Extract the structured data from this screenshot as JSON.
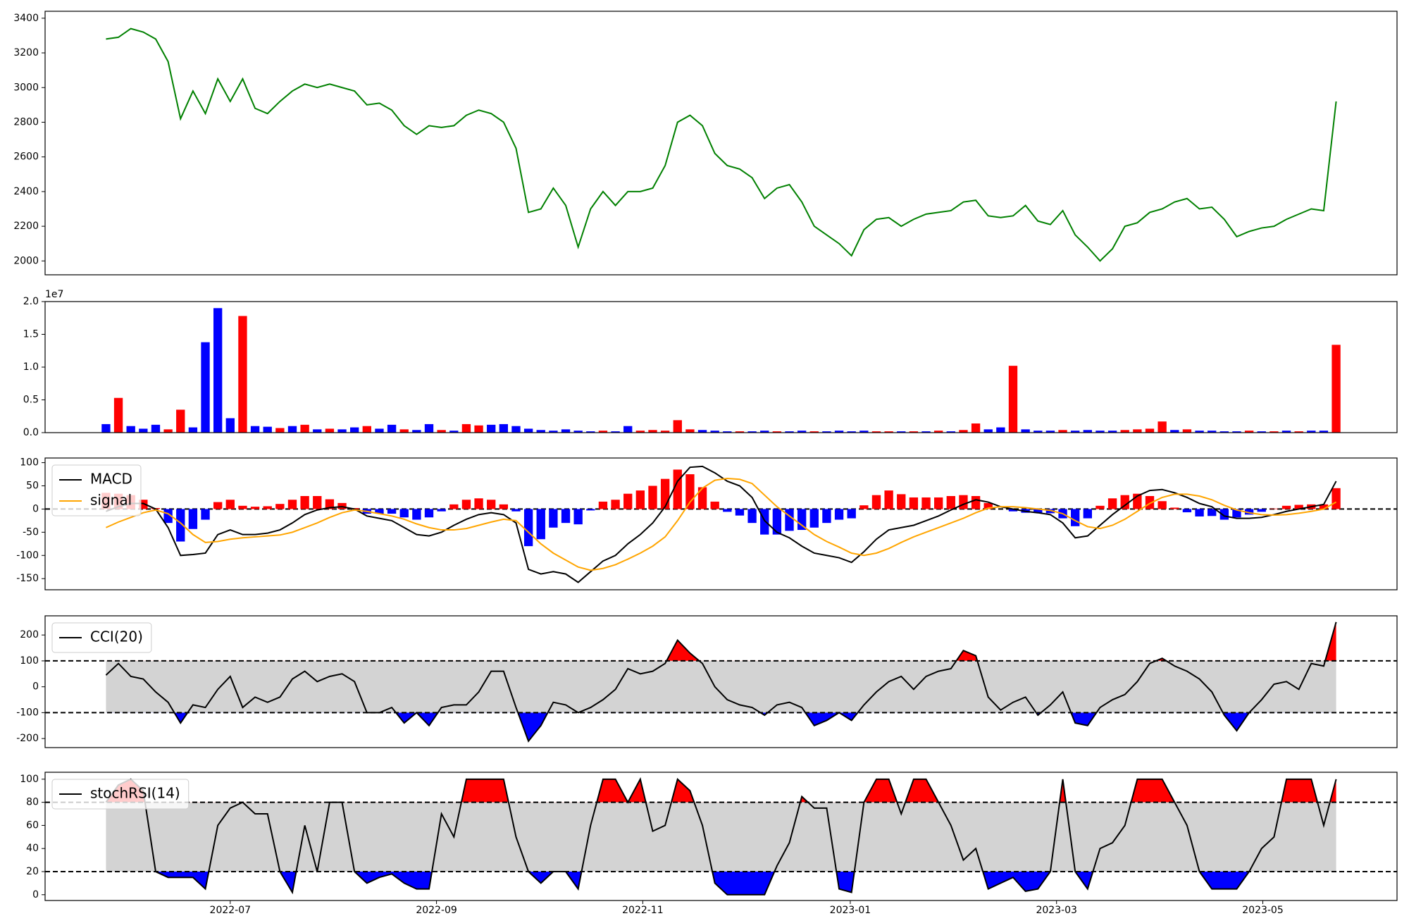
{
  "chart_data": [
    {
      "type": "line",
      "xlim": [
        -4.9,
        103.9
      ],
      "ylim": [
        1920,
        3440
      ],
      "yticks": [
        2000,
        2200,
        2400,
        2600,
        2800,
        3000,
        3200,
        3400
      ],
      "series": [
        {
          "color": "green",
          "values": [
            3280,
            3290,
            3340,
            3320,
            3280,
            3150,
            2820,
            2980,
            2850,
            3050,
            2920,
            3050,
            2880,
            2850,
            2920,
            2980,
            3020,
            3000,
            3020,
            3000,
            2980,
            2900,
            2910,
            2870,
            2780,
            2730,
            2780,
            2770,
            2780,
            2840,
            2870,
            2850,
            2800,
            2650,
            2280,
            2300,
            2420,
            2320,
            2080,
            2300,
            2400,
            2320,
            2400,
            2400,
            2420,
            2550,
            2800,
            2840,
            2780,
            2620,
            2550,
            2530,
            2480,
            2360,
            2420,
            2440,
            2340,
            2200,
            2150,
            2100,
            2030,
            2180,
            2240,
            2250,
            2200,
            2240,
            2270,
            2280,
            2290,
            2340,
            2350,
            2260,
            2250,
            2260,
            2320,
            2230,
            2210,
            2290,
            2150,
            2080,
            2000,
            2070,
            2200,
            2220,
            2280,
            2300,
            2340,
            2360,
            2300,
            2310,
            2240,
            2140,
            2170,
            2190,
            2200,
            2240,
            2270,
            2300,
            2290,
            2920
          ]
        }
      ]
    },
    {
      "type": "bar",
      "offset_text": "1e7",
      "xlim": [
        -4.9,
        103.9
      ],
      "ylim": [
        0,
        2.0
      ],
      "yticks": [
        {
          "value": 0,
          "label": "0.0"
        },
        0.5,
        {
          "value": 1,
          "label": "1.0"
        },
        1.5,
        {
          "value": 2,
          "label": "2.0"
        }
      ],
      "series": [
        {
          "values": [
            0.13,
            0.53,
            0.1,
            0.06,
            0.12,
            0.05,
            0.35,
            0.08,
            1.38,
            1.9,
            0.22,
            1.78,
            0.1,
            0.09,
            0.07,
            0.1,
            0.12,
            0.05,
            0.06,
            0.05,
            0.08,
            0.1,
            0.06,
            0.12,
            0.05,
            0.04,
            0.13,
            0.04,
            0.03,
            0.13,
            0.11,
            0.12,
            0.13,
            0.1,
            0.06,
            0.04,
            0.03,
            0.05,
            0.03,
            0.02,
            0.03,
            0.02,
            0.1,
            0.03,
            0.04,
            0.03,
            0.19,
            0.05,
            0.04,
            0.03,
            0.02,
            0.02,
            0.02,
            0.03,
            0.02,
            0.02,
            0.03,
            0.02,
            0.02,
            0.03,
            0.02,
            0.03,
            0.02,
            0.02,
            0.02,
            0.02,
            0.02,
            0.03,
            0.02,
            0.04,
            0.14,
            0.05,
            0.08,
            1.02,
            0.05,
            0.03,
            0.03,
            0.04,
            0.03,
            0.04,
            0.03,
            0.03,
            0.04,
            0.05,
            0.06,
            0.17,
            0.04,
            0.05,
            0.03,
            0.03,
            0.02,
            0.02,
            0.03,
            0.02,
            0.02,
            0.03,
            0.02,
            0.03,
            0.03,
            1.34
          ],
          "colors": [
            "blue",
            "red",
            "blue",
            "blue",
            "blue",
            "red",
            "red",
            "blue",
            "blue",
            "blue",
            "blue",
            "red",
            "blue",
            "blue",
            "red",
            "blue",
            "red",
            "blue",
            "red",
            "blue",
            "blue",
            "red",
            "blue",
            "blue",
            "red",
            "blue",
            "blue",
            "red",
            "blue",
            "red",
            "red",
            "blue",
            "blue",
            "blue",
            "blue",
            "blue",
            "blue",
            "blue",
            "blue",
            "blue",
            "red",
            "blue",
            "blue",
            "red",
            "red",
            "red",
            "red",
            "red",
            "blue",
            "blue",
            "blue",
            "red",
            "blue",
            "blue",
            "red",
            "blue",
            "blue",
            "red",
            "blue",
            "blue",
            "blue",
            "blue",
            "red",
            "red",
            "blue",
            "red",
            "blue",
            "red",
            "blue",
            "red",
            "red",
            "blue",
            "blue",
            "red",
            "blue",
            "blue",
            "blue",
            "red",
            "blue",
            "blue",
            "blue",
            "blue",
            "red",
            "red",
            "red",
            "red",
            "blue",
            "red",
            "blue",
            "blue",
            "blue",
            "blue",
            "red",
            "blue",
            "red",
            "blue",
            "red",
            "blue",
            "blue",
            "red"
          ]
        }
      ]
    },
    {
      "type": "line",
      "xlim": [
        -4.9,
        103.9
      ],
      "ylim": [
        -174,
        110
      ],
      "yticks": [
        -150,
        -100,
        -50,
        0,
        50,
        100
      ],
      "hlines": [
        0
      ],
      "legend": "upper left",
      "series": [
        {
          "name": "MACD",
          "color": "black",
          "values": [
            -5,
            5,
            12,
            12,
            0,
            -40,
            -100,
            -98,
            -95,
            -55,
            -45,
            -55,
            -55,
            -52,
            -45,
            -30,
            -12,
            -2,
            3,
            5,
            0,
            -15,
            -20,
            -25,
            -40,
            -55,
            -58,
            -50,
            -35,
            -22,
            -12,
            -8,
            -12,
            -30,
            -130,
            -140,
            -135,
            -140,
            -158,
            -135,
            -112,
            -100,
            -75,
            -55,
            -30,
            5,
            60,
            90,
            92,
            78,
            60,
            50,
            25,
            -25,
            -50,
            -62,
            -80,
            -95,
            -100,
            -105,
            -115,
            -92,
            -65,
            -45,
            -40,
            -35,
            -25,
            -15,
            -2,
            10,
            20,
            15,
            5,
            0,
            -5,
            -8,
            -12,
            -30,
            -62,
            -58,
            -35,
            -12,
            8,
            28,
            40,
            42,
            35,
            25,
            12,
            5,
            -15,
            -20,
            -20,
            -18,
            -12,
            -5,
            0,
            5,
            10,
            60
          ]
        },
        {
          "name": "signal",
          "color": "orange",
          "values": [
            -40,
            -28,
            -18,
            -8,
            -2,
            -10,
            -30,
            -55,
            -72,
            -70,
            -65,
            -62,
            -60,
            -58,
            -56,
            -50,
            -40,
            -30,
            -18,
            -8,
            -2,
            -5,
            -10,
            -15,
            -22,
            -32,
            -40,
            -45,
            -45,
            -42,
            -35,
            -28,
            -22,
            -25,
            -50,
            -75,
            -95,
            -110,
            -125,
            -132,
            -128,
            -120,
            -108,
            -95,
            -80,
            -60,
            -25,
            15,
            45,
            62,
            66,
            64,
            55,
            30,
            5,
            -15,
            -35,
            -55,
            -70,
            -82,
            -95,
            -100,
            -95,
            -85,
            -72,
            -60,
            -50,
            -40,
            -30,
            -20,
            -8,
            2,
            5,
            5,
            3,
            0,
            -3,
            -10,
            -25,
            -38,
            -42,
            -35,
            -22,
            -5,
            12,
            25,
            32,
            32,
            28,
            20,
            8,
            -2,
            -8,
            -12,
            -13,
            -12,
            -9,
            -5,
            0,
            15
          ]
        },
        {
          "kind": "bar",
          "positive_color": "red",
          "negative_color": "blue",
          "values": [
            35,
            33,
            30,
            20,
            2,
            -30,
            -70,
            -43,
            -23,
            15,
            20,
            7,
            5,
            6,
            11,
            20,
            28,
            28,
            21,
            13,
            2,
            -10,
            -10,
            -10,
            -18,
            -23,
            -18,
            -5,
            10,
            20,
            23,
            20,
            10,
            -5,
            -80,
            -65,
            -40,
            -30,
            -33,
            -3,
            16,
            20,
            33,
            40,
            50,
            65,
            85,
            75,
            47,
            16,
            -6,
            -14,
            -30,
            -55,
            -55,
            -47,
            -45,
            -40,
            -30,
            -23,
            -20,
            8,
            30,
            40,
            32,
            25,
            25,
            25,
            28,
            30,
            28,
            13,
            0,
            -5,
            -8,
            -8,
            -9,
            -20,
            -37,
            -20,
            7,
            23,
            30,
            33,
            28,
            17,
            3,
            -7,
            -16,
            -15,
            -23,
            -18,
            -12,
            -6,
            1,
            7,
            9,
            10,
            10,
            45
          ]
        }
      ]
    },
    {
      "type": "line",
      "xlim": [
        -4.9,
        103.9
      ],
      "ylim": [
        -235,
        274
      ],
      "yticks": [
        -200,
        -100,
        0,
        100,
        200
      ],
      "legend": "upper left",
      "bands": {
        "upper": 100,
        "lower": -100,
        "fill": "lightgray",
        "upper_color": "red",
        "lower_color": "blue"
      },
      "series": [
        {
          "name": "CCI(20)",
          "color": "black",
          "values": [
            45,
            90,
            40,
            30,
            -20,
            -60,
            -140,
            -70,
            -80,
            -10,
            40,
            -80,
            -40,
            -60,
            -40,
            30,
            60,
            20,
            40,
            50,
            20,
            -100,
            -100,
            -80,
            -140,
            -100,
            -150,
            -80,
            -70,
            -70,
            -20,
            60,
            60,
            -80,
            -210,
            -150,
            -60,
            -70,
            -100,
            -80,
            -50,
            -10,
            70,
            50,
            60,
            90,
            180,
            130,
            90,
            0,
            -50,
            -70,
            -80,
            -110,
            -70,
            -60,
            -80,
            -150,
            -130,
            -100,
            -130,
            -70,
            -20,
            20,
            40,
            -10,
            40,
            60,
            70,
            140,
            120,
            -40,
            -90,
            -60,
            -40,
            -110,
            -70,
            -20,
            -140,
            -150,
            -80,
            -50,
            -30,
            20,
            90,
            110,
            80,
            60,
            30,
            -20,
            -110,
            -170,
            -100,
            -50,
            10,
            20,
            -10,
            90,
            80,
            250
          ]
        }
      ]
    },
    {
      "type": "line",
      "xlim": [
        -4.9,
        103.9
      ],
      "ylim": [
        -5,
        106
      ],
      "yticks": [
        0,
        20,
        40,
        60,
        80,
        100
      ],
      "legend": "upper left",
      "xticks": [
        {
          "value": 10.0,
          "label": "2022-07"
        },
        {
          "value": 26.6,
          "label": "2022-09"
        },
        {
          "value": 43.2,
          "label": "2022-11"
        },
        {
          "value": 59.9,
          "label": "2023-01"
        },
        {
          "value": 76.5,
          "label": "2023-03"
        },
        {
          "value": 93.1,
          "label": "2023-05"
        }
      ],
      "bands": {
        "upper": 80,
        "lower": 20,
        "fill": "lightgray",
        "upper_color": "red",
        "lower_color": "blue"
      },
      "series": [
        {
          "name": "stochRSI(14)",
          "color": "black",
          "values": [
            80,
            95,
            100,
            90,
            20,
            15,
            15,
            15,
            5,
            60,
            75,
            80,
            70,
            70,
            20,
            2,
            60,
            20,
            80,
            80,
            20,
            10,
            15,
            18,
            10,
            5,
            5,
            70,
            50,
            100,
            100,
            100,
            100,
            50,
            20,
            10,
            20,
            20,
            5,
            60,
            100,
            100,
            80,
            100,
            55,
            60,
            100,
            90,
            60,
            10,
            0,
            0,
            0,
            0,
            25,
            45,
            85,
            75,
            75,
            5,
            2,
            80,
            100,
            100,
            70,
            100,
            100,
            80,
            60,
            30,
            40,
            5,
            10,
            15,
            3,
            5,
            20,
            100,
            20,
            5,
            40,
            45,
            60,
            100,
            100,
            100,
            80,
            60,
            20,
            5,
            5,
            5,
            20,
            40,
            50,
            100,
            100,
            100,
            60,
            100
          ]
        }
      ]
    }
  ]
}
